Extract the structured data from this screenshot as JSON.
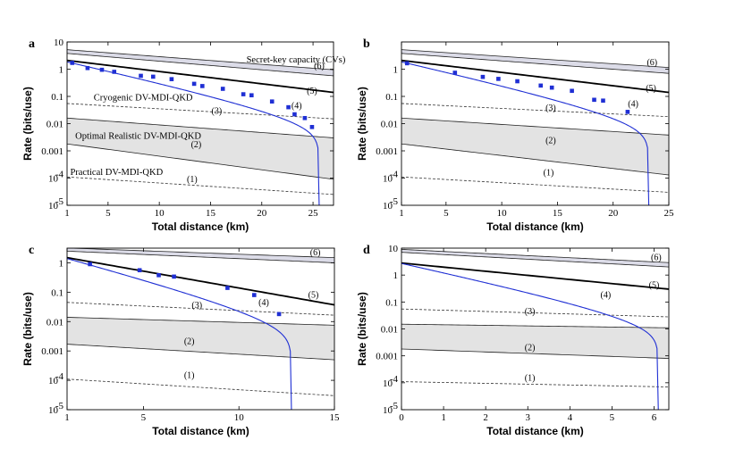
{
  "chart_data": [
    {
      "panel": "a",
      "type": "line",
      "xlabel": "Total distance (km)",
      "ylabel": "Rate (bits/use)",
      "xlim": [
        1,
        27
      ],
      "ylim_log10": [
        -5,
        1
      ],
      "xticks": [
        1,
        5,
        10,
        15,
        20,
        25
      ],
      "yticks": [
        {
          "v": -5,
          "t": "10"
        },
        {
          "v": -4,
          "t": "10"
        },
        {
          "v": -3,
          "t": "0.001"
        },
        {
          "v": -2,
          "t": "0.01"
        },
        {
          "v": -1,
          "t": "0.1"
        },
        {
          "v": 0,
          "t": "1"
        },
        {
          "v": 1,
          "t": "10"
        }
      ],
      "cv": {
        "lo_start": 3.8,
        "lo_end": 0.57,
        "hi_start": 5.2,
        "hi_end": 0.95
      },
      "bound5": {
        "start": 2.1,
        "end": 0.14
      },
      "dv_real": {
        "lo_start": 0.0018,
        "lo_end": 9e-05,
        "hi_start": 0.016,
        "hi_end": 0.003
      },
      "cryo": {
        "start": 0.055,
        "end": 0.015
      },
      "practical": {
        "start": 0.00011,
        "end": 2.5e-05
      },
      "protocol": {
        "start": 1.85,
        "endpoint": 25.6
      },
      "points": {
        "x": [
          1.5,
          3,
          4.4,
          5.6,
          8.2,
          9.4,
          11.2,
          13.4,
          14.2,
          16.2,
          18.2,
          19,
          21,
          22.6,
          23.2,
          24.2,
          24.9
        ],
        "y": [
          1.7,
          1.1,
          0.95,
          0.8,
          0.57,
          0.53,
          0.43,
          0.29,
          0.24,
          0.19,
          0.12,
          0.11,
          0.065,
          0.04,
          0.022,
          0.016,
          0.0075
        ]
      },
      "labels": [
        {
          "t": "(1)",
          "x": 13.2,
          "y": 9e-05
        },
        {
          "t": "(2)",
          "x": 13.6,
          "y": 0.0017
        },
        {
          "t": "(3)",
          "x": 15.6,
          "y": 0.029
        },
        {
          "t": "(4)",
          "x": 23.4,
          "y": 0.046
        },
        {
          "t": "(5)",
          "x": 24.9,
          "y": 0.155
        },
        {
          "t": "(6)",
          "x": 25.6,
          "y": 1.32
        }
      ],
      "annotations": [
        {
          "t": "Secret-key capacity (CVs)",
          "x": 18.5,
          "y": 1.75
        },
        {
          "t": "Cryogenic DV-MDI-QKD",
          "x": 3.6,
          "y": 0.07
        },
        {
          "t": "Optimal Realistic DV-MDI-QKD",
          "x": 1.8,
          "y": 0.0028
        },
        {
          "t": "Practical DV-MDI-QKD",
          "x": 1.3,
          "y": 0.00013
        }
      ]
    },
    {
      "panel": "b",
      "type": "line",
      "xlabel": "Total distance (km)",
      "ylabel": "Rate (bits/use)",
      "xlim": [
        1,
        25
      ],
      "ylim_log10": [
        -5,
        1
      ],
      "xticks": [
        1,
        5,
        10,
        15,
        20,
        25
      ],
      "yticks": [
        {
          "v": -5,
          "t": "10"
        },
        {
          "v": -4,
          "t": "10"
        },
        {
          "v": -3,
          "t": "0.001"
        },
        {
          "v": -2,
          "t": "0.01"
        },
        {
          "v": -1,
          "t": "0.1"
        },
        {
          "v": 0,
          "t": "1"
        }
      ],
      "cv": {
        "lo_start": 3.8,
        "lo_end": 0.7,
        "hi_start": 5.2,
        "hi_end": 1.15
      },
      "bound5": {
        "start": 2.1,
        "end": 0.14
      },
      "dv_real": {
        "lo_start": 0.0018,
        "lo_end": 0.00013,
        "hi_start": 0.016,
        "hi_end": 0.0038
      },
      "cryo": {
        "start": 0.055,
        "end": 0.018
      },
      "practical": {
        "start": 0.00011,
        "end": 3e-05
      },
      "protocol": {
        "start": 1.85,
        "endpoint": 23.2
      },
      "points": {
        "x": [
          1.5,
          5.8,
          8.3,
          9.7,
          11.4,
          13.5,
          14.5,
          16.3,
          18.3,
          19.1,
          21.3
        ],
        "y": [
          1.65,
          0.74,
          0.52,
          0.44,
          0.36,
          0.25,
          0.21,
          0.16,
          0.075,
          0.07,
          0.027
        ]
      },
      "labels": [
        {
          "t": "(1)",
          "x": 14.2,
          "y": 0.00016
        },
        {
          "t": "(2)",
          "x": 14.4,
          "y": 0.0024
        },
        {
          "t": "(3)",
          "x": 14.4,
          "y": 0.038
        },
        {
          "t": "(4)",
          "x": 21.8,
          "y": 0.052
        },
        {
          "t": "(5)",
          "x": 23.4,
          "y": 0.2
        },
        {
          "t": "(6)",
          "x": 23.5,
          "y": 1.75
        }
      ],
      "annotations": []
    },
    {
      "panel": "c",
      "type": "line",
      "xlabel": "Total distance (km)",
      "ylabel": "Rate (bits/use)",
      "xlim": [
        1,
        15
      ],
      "ylim_log10": [
        -5,
        0.5
      ],
      "xticks": [
        1,
        5,
        10,
        15
      ],
      "yticks": [
        {
          "v": -5,
          "t": "10"
        },
        {
          "v": -4,
          "t": "10"
        },
        {
          "v": -3,
          "t": "0.001"
        },
        {
          "v": -2,
          "t": "0.01"
        },
        {
          "v": -1,
          "t": "0.1"
        },
        {
          "v": 0,
          "t": "1"
        }
      ],
      "cv": {
        "lo_start": 2.5,
        "lo_end": 1.0,
        "hi_start": 3.2,
        "hi_end": 1.5
      },
      "bound5": {
        "start": 1.5,
        "end": 0.037
      },
      "dv_real": {
        "lo_start": 0.0017,
        "lo_end": 0.0005,
        "hi_start": 0.014,
        "hi_end": 0.0075
      },
      "cryo": {
        "start": 0.045,
        "end": 0.0165
      },
      "practical": {
        "start": 0.00011,
        "end": 3e-05
      },
      "protocol": {
        "start": 1.4,
        "endpoint": 12.75
      },
      "points": {
        "x": [
          2.2,
          4.8,
          5.8,
          6.6,
          9.4,
          10.8,
          12.1
        ],
        "y": [
          0.9,
          0.56,
          0.38,
          0.34,
          0.14,
          0.08,
          0.018
        ]
      },
      "labels": [
        {
          "t": "(1)",
          "x": 7.4,
          "y": 0.00015
        },
        {
          "t": "(2)",
          "x": 7.4,
          "y": 0.0021
        },
        {
          "t": "(3)",
          "x": 7.8,
          "y": 0.036
        },
        {
          "t": "(4)",
          "x": 11.3,
          "y": 0.045
        },
        {
          "t": "(5)",
          "x": 13.9,
          "y": 0.081
        },
        {
          "t": "(6)",
          "x": 14.0,
          "y": 2.2
        }
      ],
      "annotations": []
    },
    {
      "panel": "d",
      "type": "line",
      "xlabel": "Total distance (km)",
      "ylabel": "Rate (bits/use)",
      "xlim": [
        0,
        6.35
      ],
      "ylim_log10": [
        -5,
        1
      ],
      "xticks": [
        0,
        1,
        2,
        3,
        4,
        5,
        6
      ],
      "yticks": [
        {
          "v": -5,
          "t": "10"
        },
        {
          "v": -4,
          "t": "10"
        },
        {
          "v": -3,
          "t": "0.001"
        },
        {
          "v": -2,
          "t": "0.01"
        },
        {
          "v": -1,
          "t": "0.1"
        },
        {
          "v": 0,
          "t": "1"
        },
        {
          "v": 1,
          "t": "10"
        }
      ],
      "cv": {
        "lo_start": 7.0,
        "lo_end": 2.0,
        "hi_start": 9.0,
        "hi_end": 2.9
      },
      "bound5": {
        "start": 2.8,
        "end": 0.3
      },
      "dv_real": {
        "lo_start": 0.0018,
        "lo_end": 0.0008,
        "hi_start": 0.015,
        "hi_end": 0.011
      },
      "cryo": {
        "start": 0.055,
        "end": 0.028
      },
      "practical": {
        "start": 0.00011,
        "end": 7e-05
      },
      "protocol": {
        "start": 2.7,
        "endpoint": 6.1
      },
      "points": {
        "x": [],
        "y": []
      },
      "labels": [
        {
          "t": "(1)",
          "x": 3.05,
          "y": 0.00015
        },
        {
          "t": "(2)",
          "x": 3.05,
          "y": 0.002
        },
        {
          "t": "(3)",
          "x": 3.05,
          "y": 0.044
        },
        {
          "t": "(4)",
          "x": 4.85,
          "y": 0.185
        },
        {
          "t": "(5)",
          "x": 6.0,
          "y": 0.42
        },
        {
          "t": "(6)",
          "x": 6.05,
          "y": 4.5
        }
      ],
      "annotations": []
    }
  ],
  "colors": {
    "protocol": "#1f2fd4",
    "band_cv": "#dcdce8",
    "band_dv": "#e3e3e3"
  }
}
